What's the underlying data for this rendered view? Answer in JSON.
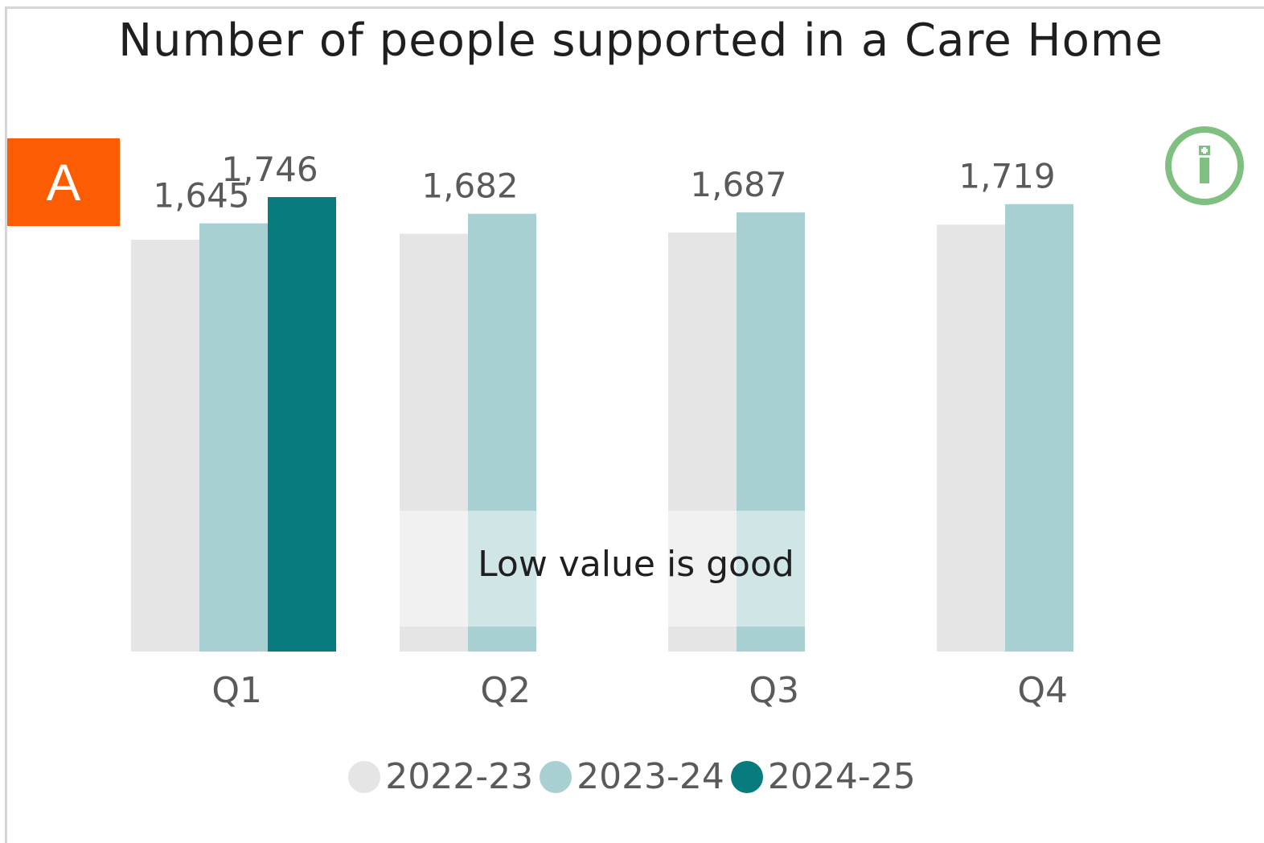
{
  "title": "Number of people supported in a Care Home",
  "rag_status": {
    "label": "A",
    "color": "#fb5c04"
  },
  "info_icon": {
    "name": "info-icon",
    "color": "#7fbf7f"
  },
  "annotation": "Low value is good",
  "legend": [
    {
      "label": "2022-23",
      "color": "#e5e5e5"
    },
    {
      "label": "2023-24",
      "color": "#a8cfd1"
    },
    {
      "label": "2024-25",
      "color": "#087b7e"
    }
  ],
  "chart_data": {
    "type": "bar",
    "title": "Number of people supported in a Care Home",
    "categories": [
      "Q1",
      "Q2",
      "Q3",
      "Q4"
    ],
    "series": [
      {
        "name": "2022-23",
        "values": [
          1582,
          1605,
          1610,
          1640
        ],
        "color": "#e5e5e5"
      },
      {
        "name": "2023-24",
        "values": [
          1645,
          1682,
          1687,
          1719
        ],
        "color": "#a8cfd1"
      },
      {
        "name": "2024-25",
        "values": [
          1746,
          null,
          null,
          null
        ],
        "color": "#087b7e"
      }
    ],
    "data_labels": [
      {
        "category": "Q1",
        "text": "1,645"
      },
      {
        "category": "Q1",
        "text": "1,746"
      },
      {
        "category": "Q2",
        "text": "1,682"
      },
      {
        "category": "Q3",
        "text": "1,687"
      },
      {
        "category": "Q4",
        "text": "1,719"
      }
    ],
    "ylim": [
      0,
      1746
    ],
    "grid": false,
    "legend_position": "bottom"
  }
}
